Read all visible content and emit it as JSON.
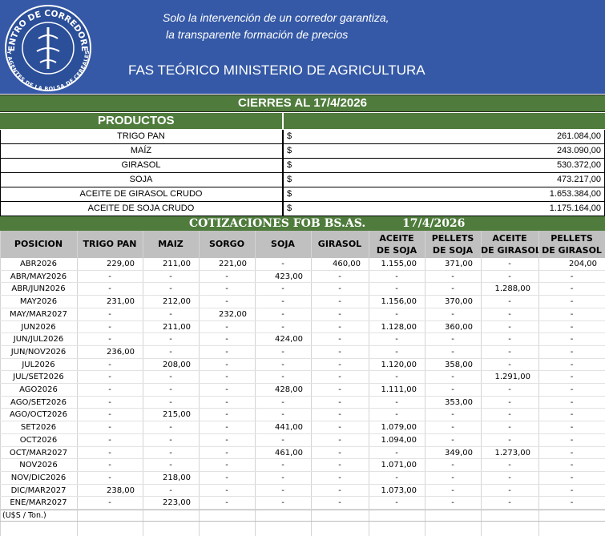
{
  "header": {
    "logo_top": "CENTRO DE CORREDORES",
    "logo_bottom": "Y AGENTES DE LA BOLSA DE CEREALES",
    "tagline": [
      "Solo la intervención de un corredor garantiza,",
      "la transparente  formación de precios"
    ],
    "title": "FAS TEÓRICO MINISTERIO DE AGRICULTURA"
  },
  "closing": {
    "title": "CIERRES AL  17/4/2026",
    "products_heading": "PRODUCTOS",
    "currency": "$",
    "rows": [
      [
        "TRIGO PAN",
        "261.084,00"
      ],
      [
        "MAÍZ",
        "243.090,00"
      ],
      [
        "GIRASOL",
        "530.372,00"
      ],
      [
        "SOJA",
        "473.217,00"
      ],
      [
        "ACEITE DE GIRASOL CRUDO",
        "1.653.384,00"
      ],
      [
        "ACEITE DE SOJA CRUDO",
        "1.175.164,00"
      ]
    ]
  },
  "fob": {
    "title": "COTIZACIONES FOB BS.AS.",
    "date": "17/4/2026",
    "columns": [
      [
        "POSICION"
      ],
      [
        "TRIGO PAN"
      ],
      [
        "MAIZ"
      ],
      [
        "SORGO"
      ],
      [
        "SOJA"
      ],
      [
        "GIRASOL"
      ],
      [
        "ACEITE",
        "DE SOJA"
      ],
      [
        "PELLETS",
        "DE SOJA"
      ],
      [
        "ACEITE",
        "DE GIRASOL"
      ],
      [
        "PELLETS",
        "DE GIRASOL"
      ]
    ],
    "rows": [
      [
        "ABR2026",
        "229,00",
        "211,00",
        "221,00",
        "-",
        "460,00",
        "1.155,00",
        "371,00",
        "-",
        "204,00"
      ],
      [
        "ABR/MAY2026",
        "-",
        "-",
        "-",
        "423,00",
        "-",
        "-",
        "-",
        "-",
        "-"
      ],
      [
        "ABR/JUN2026",
        "-",
        "-",
        "-",
        "-",
        "-",
        "-",
        "-",
        "1.288,00",
        "-"
      ],
      [
        "MAY2026",
        "231,00",
        "212,00",
        "-",
        "-",
        "-",
        "1.156,00",
        "370,00",
        "-",
        "-"
      ],
      [
        "MAY/MAR2027",
        "-",
        "-",
        "232,00",
        "-",
        "-",
        "-",
        "-",
        "-",
        "-"
      ],
      [
        "JUN2026",
        "-",
        "211,00",
        "-",
        "-",
        "-",
        "1.128,00",
        "360,00",
        "-",
        "-"
      ],
      [
        "JUN/JUL2026",
        "-",
        "-",
        "-",
        "424,00",
        "-",
        "-",
        "-",
        "-",
        "-"
      ],
      [
        "JUN/NOV2026",
        "236,00",
        "-",
        "-",
        "-",
        "-",
        "-",
        "-",
        "-",
        "-"
      ],
      [
        "JUL2026",
        "-",
        "208,00",
        "-",
        "-",
        "-",
        "1.120,00",
        "358,00",
        "-",
        "-"
      ],
      [
        "JUL/SET2026",
        "-",
        "-",
        "-",
        "-",
        "-",
        "-",
        "-",
        "1.291,00",
        "-"
      ],
      [
        "AGO2026",
        "-",
        "-",
        "-",
        "428,00",
        "-",
        "1.111,00",
        "-",
        "-",
        "-"
      ],
      [
        "AGO/SET2026",
        "-",
        "-",
        "-",
        "-",
        "-",
        "-",
        "353,00",
        "-",
        "-"
      ],
      [
        "AGO/OCT2026",
        "-",
        "215,00",
        "-",
        "-",
        "-",
        "-",
        "-",
        "-",
        "-"
      ],
      [
        "SET2026",
        "-",
        "-",
        "-",
        "441,00",
        "-",
        "1.079,00",
        "-",
        "-",
        "-"
      ],
      [
        "OCT2026",
        "-",
        "-",
        "-",
        "-",
        "-",
        "1.094,00",
        "-",
        "-",
        "-"
      ],
      [
        "OCT/MAR2027",
        "-",
        "-",
        "-",
        "461,00",
        "-",
        "-",
        "349,00",
        "1.273,00",
        "-"
      ],
      [
        "NOV2026",
        "-",
        "-",
        "-",
        "-",
        "-",
        "1.071,00",
        "-",
        "-",
        "-"
      ],
      [
        "NOV/DIC2026",
        "-",
        "218,00",
        "-",
        "-",
        "-",
        "-",
        "-",
        "-",
        "-"
      ],
      [
        "DIC/MAR2027",
        "238,00",
        "-",
        "-",
        "-",
        "-",
        "1.073,00",
        "-",
        "-",
        "-"
      ],
      [
        "ENE/MAR2027",
        "-",
        "223,00",
        "-",
        "-",
        "-",
        "-",
        "-",
        "-",
        "-"
      ]
    ],
    "unit": "(U$S /  Ton.)"
  }
}
